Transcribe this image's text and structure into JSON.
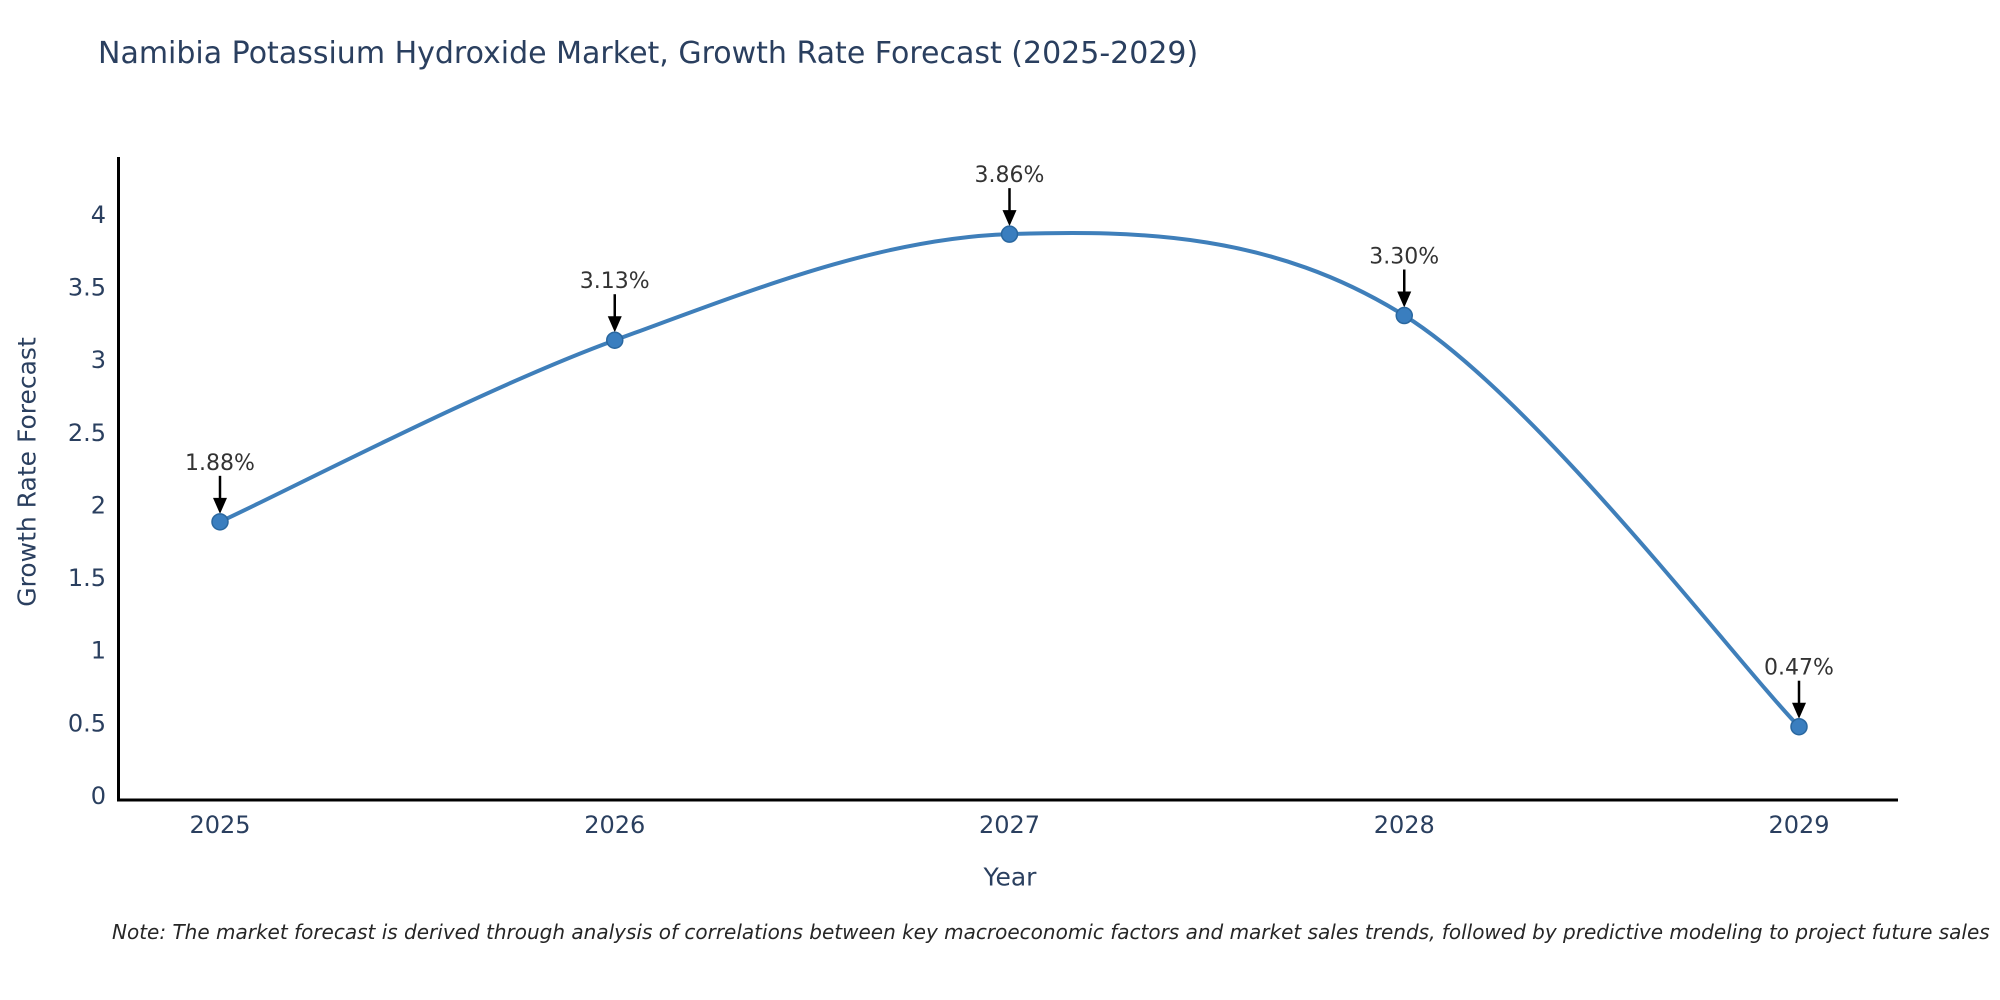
{
  "page": {
    "background": "#ffffff"
  },
  "title": "Namibia Potassium Hydroxide Market, Growth Rate Forecast (2025-2029)",
  "note": "Note: The market forecast is derived through analysis of correlations between key macroeconomic factors and market sales trends, followed by predictive modeling to project future sales",
  "chart_data": {
    "type": "line",
    "title": "Namibia Potassium Hydroxide Market, Growth Rate Forecast (2025-2029)",
    "x": [
      2025,
      2026,
      2027,
      2028,
      2029
    ],
    "series": [
      {
        "name": "Growth Rate Forecast",
        "values": [
          1.88,
          3.13,
          3.86,
          3.3,
          0.47
        ]
      }
    ],
    "point_labels": [
      "1.88%",
      "3.13%",
      "3.86%",
      "3.30%",
      "0.47%"
    ],
    "xlabel": "Year",
    "ylabel": "Growth Rate Forecast",
    "ylim": [
      0,
      4.4
    ],
    "yticks": [
      0,
      0.5,
      1,
      1.5,
      2,
      2.5,
      3,
      3.5,
      4
    ],
    "xtick_labels": [
      "2025",
      "2026",
      "2027",
      "2028",
      "2029"
    ],
    "line_shape": "spline",
    "grid": false,
    "legend": "none",
    "markers": true,
    "annotations_have_arrows": true,
    "colors": {
      "line": "#3f7fba",
      "marker": "#3a7ebf",
      "marker_edge": "#2a679f",
      "axis": "#000000",
      "tick_text": "#2a3f5f",
      "title_text": "#2a3f5f",
      "annotation_text": "#333333",
      "arrow": "#000000",
      "note_text": "#262626"
    }
  }
}
